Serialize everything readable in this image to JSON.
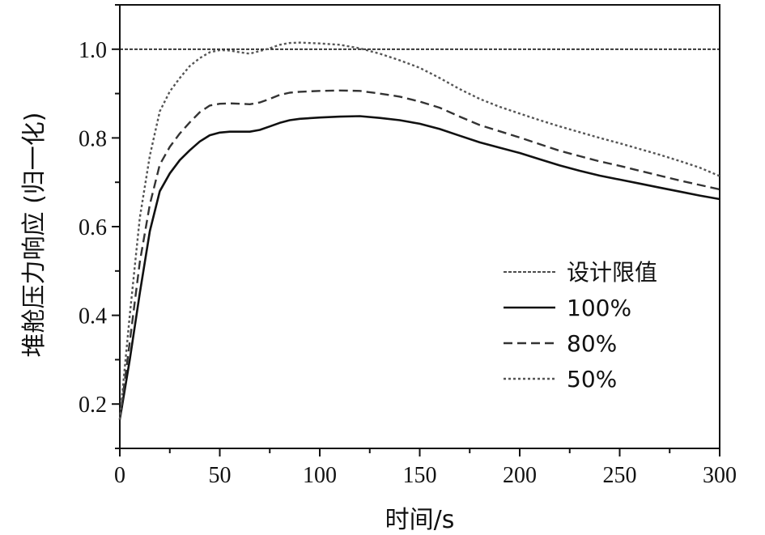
{
  "chart_data": {
    "type": "line",
    "xlabel": "时间/s",
    "ylabel": "堆舱压力响应 (归一化)",
    "xlim": [
      0,
      300
    ],
    "ylim": [
      0.1,
      1.1
    ],
    "x_ticks": [
      "0",
      "50",
      "100",
      "150",
      "200",
      "250",
      "300"
    ],
    "y_ticks": [
      "0.2",
      "0.4",
      "0.6",
      "0.8",
      "1.0"
    ],
    "grid": false,
    "legend_position": "bottom-right",
    "series": [
      {
        "name": "设计限值",
        "style": "dash-fine",
        "color": "#111111",
        "x": [
          0,
          300
        ],
        "y": [
          1.0,
          1.0
        ]
      },
      {
        "name": "100%",
        "style": "solid",
        "color": "#111111",
        "x": [
          0,
          5,
          10,
          15,
          20,
          25,
          30,
          35,
          40,
          45,
          50,
          55,
          60,
          65,
          70,
          75,
          80,
          85,
          90,
          100,
          110,
          120,
          130,
          140,
          150,
          160,
          170,
          180,
          190,
          200,
          210,
          220,
          230,
          240,
          250,
          260,
          270,
          280,
          290,
          300
        ],
        "y": [
          0.165,
          0.3,
          0.45,
          0.59,
          0.68,
          0.72,
          0.75,
          0.772,
          0.792,
          0.806,
          0.812,
          0.814,
          0.814,
          0.814,
          0.818,
          0.826,
          0.834,
          0.84,
          0.843,
          0.846,
          0.848,
          0.849,
          0.845,
          0.84,
          0.832,
          0.82,
          0.805,
          0.79,
          0.778,
          0.766,
          0.752,
          0.738,
          0.726,
          0.715,
          0.706,
          0.697,
          0.688,
          0.679,
          0.67,
          0.662
        ]
      },
      {
        "name": "80%",
        "style": "dash",
        "color": "#333333",
        "x": [
          0,
          5,
          10,
          15,
          20,
          25,
          30,
          35,
          40,
          45,
          50,
          55,
          60,
          65,
          70,
          75,
          80,
          85,
          90,
          100,
          110,
          120,
          130,
          140,
          150,
          160,
          170,
          180,
          190,
          200,
          210,
          220,
          230,
          240,
          250,
          260,
          270,
          280,
          290,
          300
        ],
        "y": [
          0.165,
          0.34,
          0.52,
          0.65,
          0.74,
          0.78,
          0.81,
          0.835,
          0.858,
          0.873,
          0.877,
          0.878,
          0.877,
          0.876,
          0.88,
          0.888,
          0.897,
          0.902,
          0.904,
          0.906,
          0.907,
          0.906,
          0.9,
          0.893,
          0.882,
          0.868,
          0.848,
          0.829,
          0.815,
          0.801,
          0.786,
          0.771,
          0.759,
          0.747,
          0.737,
          0.726,
          0.715,
          0.704,
          0.694,
          0.684
        ]
      },
      {
        "name": "50%",
        "style": "dot",
        "color": "#555555",
        "x": [
          0,
          5,
          10,
          15,
          20,
          25,
          30,
          35,
          40,
          45,
          50,
          55,
          60,
          65,
          70,
          75,
          80,
          85,
          90,
          100,
          110,
          120,
          130,
          140,
          150,
          160,
          170,
          180,
          190,
          200,
          210,
          220,
          230,
          240,
          250,
          260,
          270,
          280,
          290,
          300
        ],
        "y": [
          0.165,
          0.4,
          0.62,
          0.76,
          0.86,
          0.905,
          0.935,
          0.962,
          0.98,
          0.993,
          0.998,
          0.997,
          0.993,
          0.99,
          0.996,
          1.002,
          1.01,
          1.014,
          1.015,
          1.013,
          1.01,
          1.002,
          0.99,
          0.975,
          0.958,
          0.935,
          0.91,
          0.888,
          0.87,
          0.855,
          0.84,
          0.826,
          0.813,
          0.8,
          0.788,
          0.775,
          0.762,
          0.748,
          0.733,
          0.714
        ]
      }
    ]
  }
}
